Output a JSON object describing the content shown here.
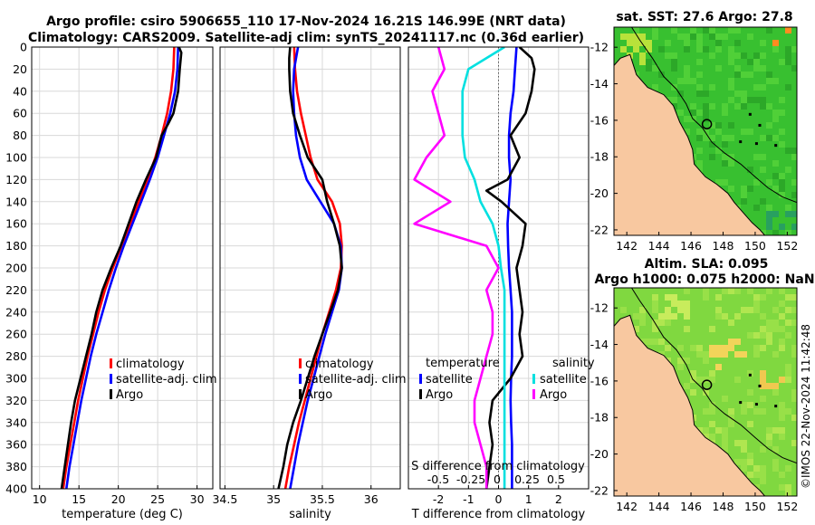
{
  "header": {
    "title_line1": "Argo profile: csiro 5906655_110 17-Nov-2024 16.21S 146.99E (NRT data)",
    "title_line2": "Climatology: CARS2009. Satellite-adj clim: synTS_20241117.nc (0.36d earlier)"
  },
  "side_stamp": "©IMOS 22-Nov-2024 11:42:48",
  "colors": {
    "climatology": "#ff0000",
    "satellite": "#0000ff",
    "argo": "#000000",
    "salinity_satellite": "#00e0e0",
    "salinity_argo": "#ff00ff",
    "land": "#f8c8a0"
  },
  "chart_data": [
    {
      "type": "line",
      "name": "temperature-profile",
      "xlabel": "temperature (deg C)",
      "ylabel": "",
      "xlim": [
        9,
        32
      ],
      "ylim": [
        400,
        0
      ],
      "xticks": [
        "10",
        "15",
        "20",
        "25",
        "30"
      ],
      "xtick_values": [
        10,
        15,
        20,
        25,
        30
      ],
      "yticks": [
        "0",
        "20",
        "40",
        "60",
        "80",
        "100",
        "120",
        "140",
        "160",
        "180",
        "200",
        "220",
        "240",
        "260",
        "280",
        "300",
        "320",
        "340",
        "360",
        "380",
        "400"
      ],
      "ytick_values": [
        0,
        20,
        40,
        60,
        80,
        100,
        120,
        140,
        160,
        180,
        200,
        220,
        240,
        260,
        280,
        300,
        320,
        340,
        360,
        380,
        400
      ],
      "legend": [
        "climatology",
        "satellite-adj. clim",
        "Argo"
      ],
      "series": [
        {
          "name": "climatology",
          "color": "#ff0000",
          "depth": [
            0,
            20,
            40,
            60,
            80,
            100,
            120,
            140,
            160,
            180,
            200,
            220,
            240,
            260,
            280,
            300,
            320,
            340,
            360,
            380,
            400
          ],
          "values": [
            27.1,
            27.0,
            26.7,
            26.2,
            25.5,
            24.7,
            23.7,
            22.6,
            21.5,
            20.4,
            19.3,
            18.3,
            17.5,
            16.8,
            16.1,
            15.5,
            14.9,
            14.4,
            13.9,
            13.4,
            13.0
          ]
        },
        {
          "name": "satellite-adj. clim",
          "color": "#0000ff",
          "depth": [
            0,
            20,
            40,
            60,
            80,
            100,
            120,
            140,
            160,
            180,
            200,
            220,
            240,
            260,
            280,
            300,
            320,
            340,
            360,
            380,
            400
          ],
          "values": [
            27.6,
            27.5,
            27.2,
            26.6,
            25.8,
            25.0,
            24.0,
            22.9,
            21.8,
            20.7,
            19.7,
            18.8,
            18.0,
            17.2,
            16.5,
            15.9,
            15.3,
            14.8,
            14.3,
            13.8,
            13.4
          ]
        },
        {
          "name": "Argo",
          "color": "#000000",
          "depth": [
            0,
            5,
            20,
            40,
            60,
            70,
            80,
            100,
            120,
            140,
            160,
            180,
            200,
            220,
            240,
            260,
            280,
            300,
            320,
            340,
            360,
            380,
            400
          ],
          "values": [
            27.7,
            28.0,
            27.8,
            27.6,
            27.0,
            26.3,
            25.5,
            24.8,
            23.5,
            22.3,
            21.3,
            20.3,
            19.1,
            18.0,
            17.2,
            16.6,
            15.9,
            15.2,
            14.5,
            14.0,
            13.6,
            13.2,
            12.8
          ]
        }
      ]
    },
    {
      "type": "line",
      "name": "salinity-profile",
      "xlabel": "salinity",
      "xlim": [
        34.45,
        36.3
      ],
      "ylim": [
        400,
        0
      ],
      "xticks": [
        "34.5",
        "35",
        "35.5",
        "36"
      ],
      "xtick_values": [
        34.5,
        35,
        35.5,
        36
      ],
      "legend": [
        "climatology",
        "satellite-adj. clim",
        "Argo"
      ],
      "series": [
        {
          "name": "climatology",
          "color": "#ff0000",
          "depth": [
            0,
            20,
            40,
            60,
            80,
            100,
            120,
            140,
            160,
            180,
            200,
            220,
            240,
            260,
            280,
            300,
            320,
            340,
            360,
            380,
            400
          ],
          "values": [
            35.21,
            35.22,
            35.24,
            35.28,
            35.33,
            35.38,
            35.45,
            35.6,
            35.68,
            35.7,
            35.69,
            35.64,
            35.57,
            35.5,
            35.44,
            35.38,
            35.32,
            35.26,
            35.21,
            35.16,
            35.12
          ]
        },
        {
          "name": "satellite-adj. clim",
          "color": "#0000ff",
          "depth": [
            0,
            20,
            40,
            60,
            80,
            100,
            120,
            140,
            160,
            180,
            200,
            220,
            240,
            260,
            280,
            300,
            320,
            340,
            360,
            380,
            400
          ],
          "values": [
            35.25,
            35.21,
            35.2,
            35.21,
            35.23,
            35.27,
            35.34,
            35.48,
            35.62,
            35.69,
            35.7,
            35.67,
            35.6,
            35.53,
            35.47,
            35.41,
            35.35,
            35.3,
            35.25,
            35.21,
            35.17
          ]
        },
        {
          "name": "Argo",
          "color": "#000000",
          "depth": [
            0,
            10,
            20,
            40,
            60,
            80,
            100,
            120,
            140,
            160,
            180,
            200,
            220,
            240,
            260,
            280,
            300,
            320,
            340,
            360,
            380,
            400
          ],
          "values": [
            35.17,
            35.16,
            35.16,
            35.17,
            35.2,
            35.27,
            35.35,
            35.5,
            35.55,
            35.62,
            35.68,
            35.7,
            35.66,
            35.58,
            35.5,
            35.42,
            35.35,
            35.28,
            35.2,
            35.14,
            35.1,
            35.05
          ]
        }
      ]
    },
    {
      "type": "line",
      "name": "difference-profile",
      "xlabel": "T difference from climatology",
      "xlabel_top": "S difference from climatology",
      "xlim": [
        -3,
        3
      ],
      "ylim": [
        400,
        0
      ],
      "xticks": [
        "-2",
        "-1",
        "0",
        "1",
        "2"
      ],
      "xtick_values": [
        -2,
        -1,
        0,
        1,
        2
      ],
      "top_ticks": [
        "-0.5",
        "-0.25",
        "0",
        "0.25",
        "0.5"
      ],
      "legend_left_title": "temperature",
      "legend_right_title": "salinity",
      "legend_left": [
        "satellite",
        "Argo"
      ],
      "legend_right": [
        "satellite",
        "Argo"
      ],
      "series": [
        {
          "name": "temperature satellite",
          "color": "#0000ff",
          "depth": [
            0,
            20,
            40,
            60,
            80,
            100,
            120,
            140,
            160,
            180,
            200,
            220,
            240,
            260,
            280,
            300,
            320,
            340,
            360,
            380,
            400
          ],
          "values": [
            0.6,
            0.55,
            0.5,
            0.4,
            0.35,
            0.35,
            0.4,
            0.35,
            0.3,
            0.32,
            0.35,
            0.4,
            0.45,
            0.45,
            0.45,
            0.42,
            0.4,
            0.42,
            0.45,
            0.45,
            0.45
          ]
        },
        {
          "name": "temperature Argo",
          "color": "#000000",
          "depth": [
            0,
            10,
            20,
            40,
            60,
            80,
            100,
            120,
            130,
            140,
            160,
            180,
            200,
            220,
            240,
            260,
            280,
            300,
            320,
            340,
            360,
            380,
            400
          ],
          "values": [
            0.7,
            1.1,
            1.2,
            1.1,
            0.9,
            0.4,
            0.7,
            0.3,
            -0.4,
            0.1,
            0.9,
            0.8,
            0.6,
            0.7,
            0.8,
            0.7,
            0.8,
            0.4,
            -0.2,
            -0.3,
            -0.2,
            -0.3,
            -0.4
          ]
        },
        {
          "name": "salinity satellite",
          "color": "#00e0e0",
          "depth": [
            0,
            20,
            40,
            60,
            80,
            100,
            120,
            140,
            160,
            180,
            200,
            220,
            240,
            260,
            280,
            300,
            320,
            340,
            360,
            380,
            400
          ],
          "values": [
            0.05,
            -0.25,
            -0.3,
            -0.3,
            -0.3,
            -0.28,
            -0.2,
            -0.15,
            -0.05,
            0.0,
            0.02,
            0.05,
            0.05,
            0.05,
            0.05,
            0.05,
            0.05,
            0.05,
            0.05,
            0.05,
            0.05
          ]
        },
        {
          "name": "salinity Argo",
          "color": "#ff00ff",
          "depth": [
            0,
            20,
            40,
            60,
            80,
            100,
            120,
            140,
            160,
            180,
            200,
            220,
            240,
            260,
            280,
            300,
            320,
            340,
            360,
            380,
            400
          ],
          "values": [
            -0.5,
            -0.45,
            -0.55,
            -0.5,
            -0.45,
            -0.6,
            -0.7,
            -0.4,
            -0.7,
            -0.1,
            0.0,
            -0.1,
            -0.05,
            -0.05,
            -0.1,
            -0.15,
            -0.2,
            -0.2,
            -0.15,
            -0.1,
            -0.1
          ]
        }
      ]
    },
    {
      "type": "heatmap",
      "name": "sst-map",
      "title": "sat. SST: 27.6 Argo: 27.8",
      "xticks": [
        "142",
        "144",
        "146",
        "148",
        "150",
        "152"
      ],
      "yticks": [
        "-12",
        "-14",
        "-16",
        "-18",
        "-20",
        "-22"
      ]
    },
    {
      "type": "heatmap",
      "name": "sla-map",
      "title_line1": "Altim. SLA: 0.095",
      "title_line2": "Argo h1000: 0.075 h2000: NaN",
      "xticks": [
        "142",
        "144",
        "146",
        "148",
        "150",
        "152"
      ],
      "yticks": [
        "-12",
        "-14",
        "-16",
        "-18",
        "-20",
        "-22"
      ]
    }
  ]
}
